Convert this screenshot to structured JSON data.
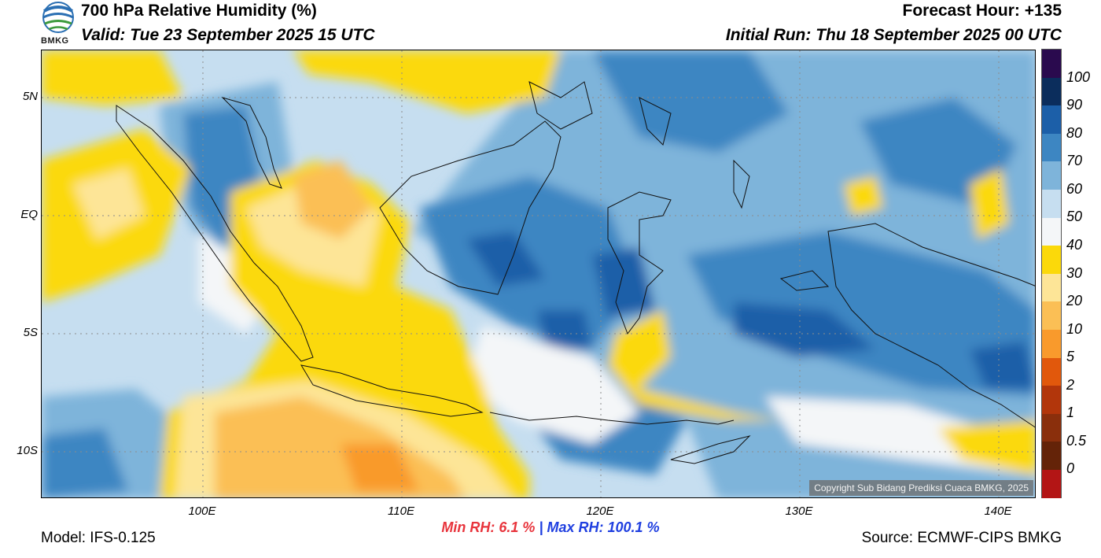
{
  "header": {
    "title": "700 hPa Relative Humidity (%)",
    "valid": "Valid: Tue 23 September 2025 15 UTC",
    "forecast_hour": "Forecast Hour: +135",
    "initial_run": "Initial Run: Thu 18 September 2025 00 UTC"
  },
  "logo": {
    "text": "BMKG"
  },
  "map": {
    "latitude_labels": [
      "5N",
      "EQ",
      "5S",
      "10S"
    ],
    "longitude_labels": [
      "100E",
      "110E",
      "120E",
      "130E",
      "140E"
    ],
    "copyright": "Copyright Sub Bidang Prediksi Cuaca BMKG, 2025"
  },
  "colorbar": {
    "labels": [
      "100",
      "90",
      "80",
      "70",
      "60",
      "50",
      "40",
      "30",
      "20",
      "10",
      "5",
      "2",
      "1",
      "0.5",
      "0"
    ],
    "colors": [
      "#2a0a4e",
      "#0b2d5c",
      "#1c5fa8",
      "#3d86c2",
      "#7eb4da",
      "#c6def0",
      "#f4f6f8",
      "#fbd90a",
      "#fde597",
      "#fbbf55",
      "#f99a2c",
      "#e1580c",
      "#b2360b",
      "#8a2f0c",
      "#642308",
      "#b31515",
      "#e83f36"
    ]
  },
  "stats": {
    "min_label": "Min RH:",
    "min_value": "6.1 %",
    "separator": "|",
    "max_label": "Max RH: 100.1 %"
  },
  "footer": {
    "model": "Model: IFS-0.125",
    "source": "Source: ECMWF-CIPS BMKG"
  }
}
